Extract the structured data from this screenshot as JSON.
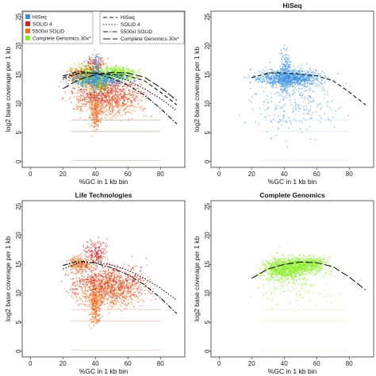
{
  "colors": {
    "HiSeq": "#3a8fe0",
    "SOLiD 4": "#cc2222",
    "5500xl SOLiD": "#f07020",
    "Complete Genomics 30x*": "#88ee22"
  },
  "chart_data": [
    {
      "type": "scatter",
      "title": "",
      "xlabel": "%GC in 1 kb bin",
      "ylabel": "log2 base coverage per 1 kb",
      "xlim": [
        -5,
        95
      ],
      "ylim": [
        -1,
        26
      ],
      "xticks": [
        0,
        20,
        40,
        60,
        80
      ],
      "yticks": [
        0,
        5,
        10,
        15,
        20,
        25
      ],
      "legend_points": {
        "placement": "top-left",
        "entries": [
          "HiSeq",
          "SOLiD 4",
          "5500xl SOLiD",
          "Complete Genomics 30x*"
        ]
      },
      "legend_lines": {
        "placement": "top-right",
        "entries": [
          {
            "label": "HiSeq",
            "dash": "dashed"
          },
          {
            "label": "SOLiD 4",
            "dash": "dotted"
          },
          {
            "label": "5500xl SOLiD",
            "dash": "dashdot"
          },
          {
            "label": "Complete Genomics 30x*",
            "dash": "longdash"
          }
        ]
      },
      "series": [
        {
          "name": "Complete Genomics 30x*",
          "clouds": [
            {
              "x": [
                22,
                52
              ],
              "y": [
                12,
                17.5
              ],
              "n": 700
            },
            {
              "x": [
                38,
                70
              ],
              "y": [
                13.5,
                17
              ],
              "n": 500
            },
            {
              "x": [
                35,
                50
              ],
              "y": [
                11.5,
                15
              ],
              "n": 200
            }
          ]
        },
        {
          "name": "5500xl SOLiD",
          "clouds": [
            {
              "x": [
                18,
                78
              ],
              "y": [
                6,
                15.5
              ],
              "n": 700
            },
            {
              "x": [
                35,
                45
              ],
              "y": [
                4,
                13
              ],
              "n": 250
            },
            {
              "x": [
                20,
                40
              ],
              "y": [
                13,
                17
              ],
              "n": 200
            }
          ]
        },
        {
          "name": "SOLiD 4",
          "clouds": [
            {
              "x": [
                15,
                80
              ],
              "y": [
                8,
                16
              ],
              "n": 450
            },
            {
              "x": [
                30,
                50
              ],
              "y": [
                14,
                19
              ],
              "n": 150
            }
          ]
        },
        {
          "name": "HiSeq",
          "clouds": [
            {
              "x": [
                15,
                70
              ],
              "y": [
                12.5,
                16
              ],
              "n": 500
            },
            {
              "x": [
                37,
                44
              ],
              "y": [
                10,
                20
              ],
              "n": 150
            }
          ]
        }
      ],
      "fits": [
        {
          "name": "HiSeq",
          "dash": "dashed",
          "x": [
            20,
            30,
            40,
            50,
            60,
            70,
            80,
            90
          ],
          "y": [
            14.5,
            15.3,
            15.3,
            15.1,
            14.8,
            14.0,
            12.0,
            9.8
          ]
        },
        {
          "name": "SOLiD 4",
          "dash": "dotted",
          "x": [
            20,
            30,
            40,
            50,
            60,
            70,
            80,
            90
          ],
          "y": [
            14.2,
            15.3,
            15.3,
            14.9,
            14.0,
            12.6,
            10.9,
            8.8
          ]
        },
        {
          "name": "5500xl SOLiD",
          "dash": "dashdot",
          "x": [
            20,
            30,
            40,
            50,
            60,
            70,
            80,
            90
          ],
          "y": [
            14.8,
            15.6,
            15.2,
            14.4,
            13.2,
            11.5,
            9.2,
            6.5
          ]
        },
        {
          "name": "Complete Genomics 30x*",
          "dash": "longdash",
          "x": [
            20,
            30,
            40,
            50,
            60,
            70,
            80,
            90
          ],
          "y": [
            12.6,
            14.2,
            15.0,
            15.4,
            15.3,
            14.6,
            12.8,
            10.6
          ]
        }
      ]
    },
    {
      "type": "scatter",
      "title": "HiSeq",
      "xlabel": "%GC in 1 kb bin",
      "ylabel": "log2 base coverage per 1 kb",
      "xlim": [
        -5,
        95
      ],
      "ylim": [
        -1,
        26
      ],
      "xticks": [
        0,
        20,
        40,
        60,
        80
      ],
      "yticks": [
        0,
        5,
        10,
        15,
        20,
        25
      ],
      "series": [
        {
          "name": "HiSeq",
          "clouds": [
            {
              "x": [
                15,
                72
              ],
              "y": [
                12.5,
                16.5
              ],
              "n": 900
            },
            {
              "x": [
                36,
                46
              ],
              "y": [
                9,
                21
              ],
              "n": 250
            },
            {
              "x": [
                5,
                88
              ],
              "y": [
                2,
                19
              ],
              "n": 300
            }
          ]
        }
      ],
      "fits": [
        {
          "name": "HiSeq",
          "dash": "dashed",
          "x": [
            20,
            30,
            40,
            50,
            60,
            70,
            80,
            90
          ],
          "y": [
            14.5,
            15.3,
            15.3,
            15.1,
            14.8,
            14.0,
            12.0,
            9.8
          ]
        }
      ]
    },
    {
      "type": "scatter",
      "title": "Life Technologies",
      "xlabel": "%GC in 1 kb bin",
      "ylabel": "log2 base coverage per 1 kb",
      "xlim": [
        -5,
        95
      ],
      "ylim": [
        -1,
        26
      ],
      "xticks": [
        0,
        20,
        40,
        60,
        80
      ],
      "yticks": [
        0,
        5,
        10,
        15,
        20,
        25
      ],
      "series": [
        {
          "name": "5500xl SOLiD",
          "clouds": [
            {
              "x": [
                18,
                78
              ],
              "y": [
                6,
                15.5
              ],
              "n": 900
            },
            {
              "x": [
                35,
                45
              ],
              "y": [
                3,
                13
              ],
              "n": 300
            },
            {
              "x": [
                20,
                40
              ],
              "y": [
                13,
                17
              ],
              "n": 250
            }
          ]
        },
        {
          "name": "SOLiD 4",
          "clouds": [
            {
              "x": [
                12,
                85
              ],
              "y": [
                7,
                17
              ],
              "n": 500
            },
            {
              "x": [
                30,
                50
              ],
              "y": [
                14,
                20
              ],
              "n": 200
            }
          ]
        }
      ],
      "fits": [
        {
          "name": "SOLiD 4",
          "dash": "dotted",
          "x": [
            20,
            30,
            40,
            50,
            60,
            70,
            80,
            90
          ],
          "y": [
            14.2,
            15.3,
            15.3,
            14.9,
            14.0,
            12.6,
            10.9,
            8.8
          ]
        },
        {
          "name": "5500xl SOLiD",
          "dash": "dashdot",
          "x": [
            20,
            30,
            40,
            50,
            60,
            70,
            80,
            90
          ],
          "y": [
            14.8,
            15.6,
            15.2,
            14.4,
            13.2,
            11.5,
            9.2,
            6.5
          ]
        }
      ]
    },
    {
      "type": "scatter",
      "title": "Complete Genomics",
      "xlabel": "%GC in 1 kb bin",
      "ylabel": "log2 base coverage per 1 kb",
      "xlim": [
        -5,
        95
      ],
      "ylim": [
        -1,
        26
      ],
      "xticks": [
        0,
        20,
        40,
        60,
        80
      ],
      "yticks": [
        0,
        5,
        10,
        15,
        20,
        25
      ],
      "series": [
        {
          "name": "Complete Genomics 30x*",
          "clouds": [
            {
              "x": [
                22,
                60
              ],
              "y": [
                11.5,
                17
              ],
              "n": 900
            },
            {
              "x": [
                38,
                72
              ],
              "y": [
                13,
                17
              ],
              "n": 500
            },
            {
              "x": [
                10,
                85
              ],
              "y": [
                6,
                19
              ],
              "n": 200
            }
          ]
        }
      ],
      "fits": [
        {
          "name": "Complete Genomics 30x*",
          "dash": "longdash",
          "x": [
            20,
            30,
            40,
            50,
            60,
            70,
            80,
            90
          ],
          "y": [
            12.6,
            14.2,
            15.0,
            15.4,
            15.3,
            14.6,
            12.8,
            10.6
          ]
        }
      ]
    }
  ]
}
